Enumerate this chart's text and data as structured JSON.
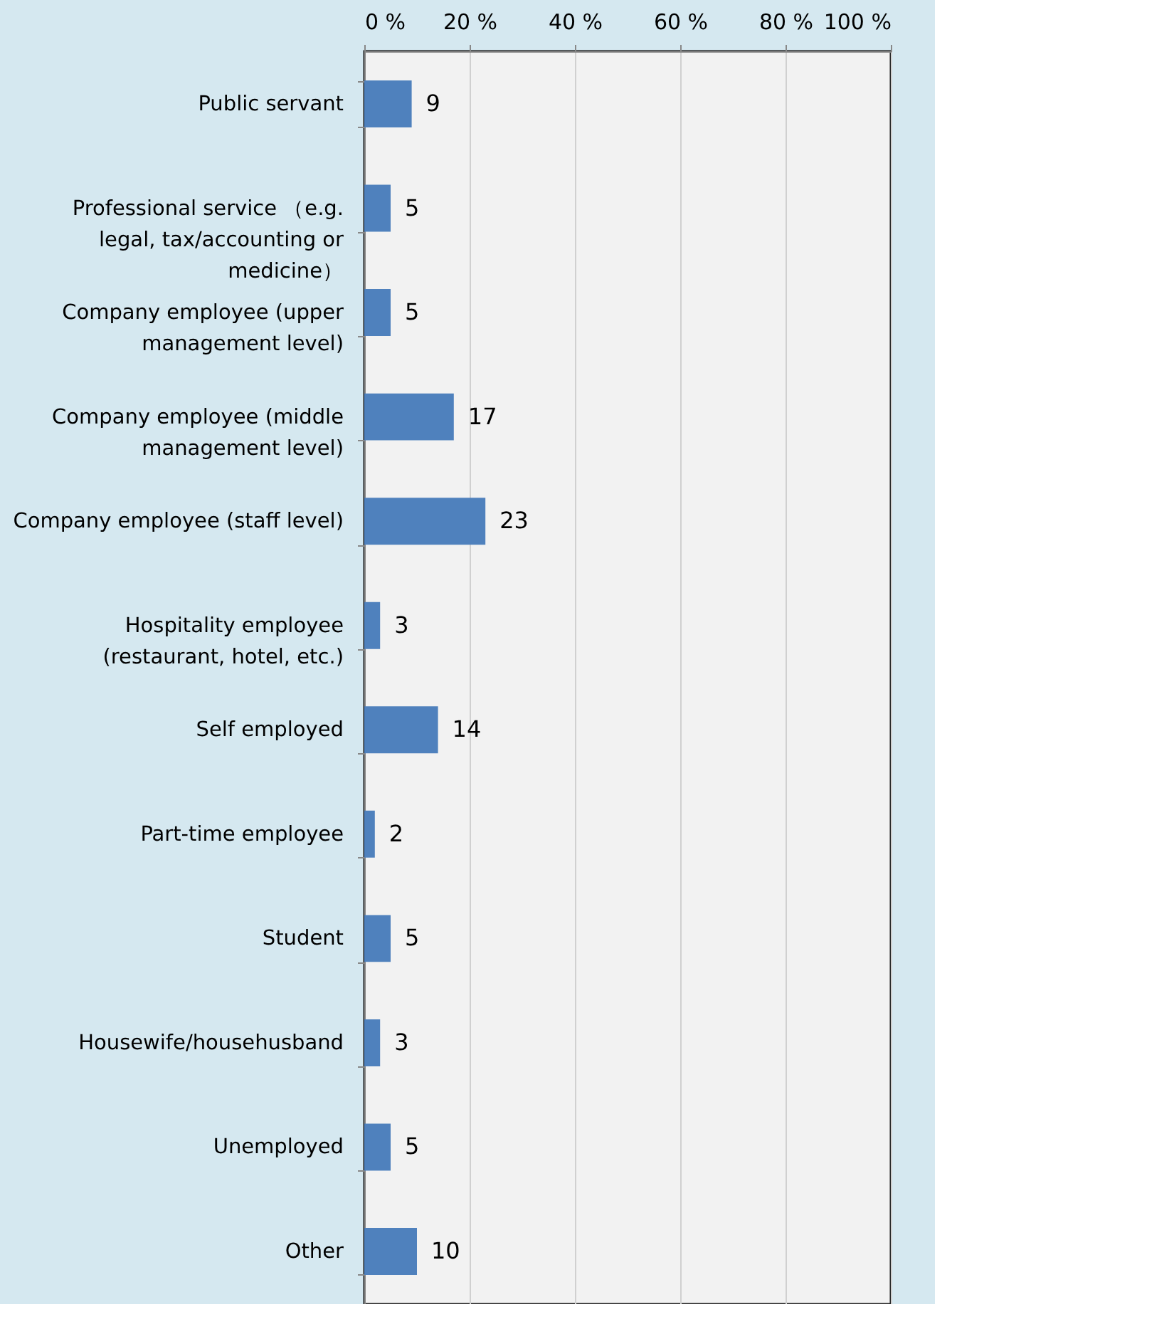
{
  "chart_data": {
    "type": "bar",
    "orientation": "horizontal",
    "categories": [
      "Public servant",
      "Professional service （e.g. legal, tax/accounting or medicine）",
      "Company employee (upper management level)",
      "Company employee (middle management level)",
      "Company employee (staff level)",
      "Hospitality employee (restaurant, hotel, etc.)",
      "Self employed",
      "Part-time employee",
      "Student",
      "Housewife/househusband",
      "Unemployed",
      "Other"
    ],
    "values": [
      9,
      5,
      5,
      17,
      23,
      3,
      14,
      2,
      5,
      3,
      5,
      10
    ],
    "color": "#4f81bd",
    "data_labels": true,
    "xlim": [
      0,
      100
    ],
    "xticks": [
      {
        "value": 0,
        "label": "0 %"
      },
      {
        "value": 20,
        "label": "20 %"
      },
      {
        "value": 40,
        "label": "40 %"
      },
      {
        "value": 60,
        "label": "60 %"
      },
      {
        "value": 80,
        "label": "80 %"
      },
      {
        "value": 100,
        "label": "100 %"
      }
    ],
    "grid": "x"
  }
}
